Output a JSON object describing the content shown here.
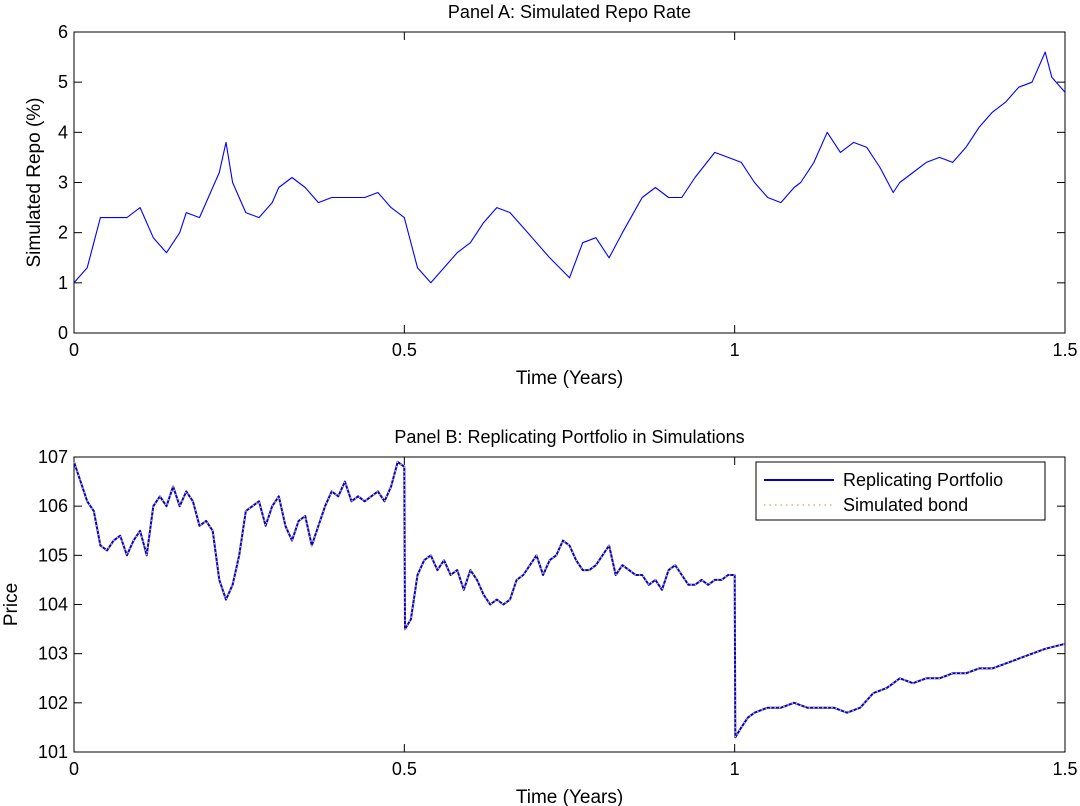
{
  "chart_data": [
    {
      "type": "line",
      "title": "Panel A: Simulated Repo Rate",
      "xlabel": "Time (Years)",
      "ylabel": "Simulated Repo (%)",
      "xlim": [
        0,
        1.5
      ],
      "ylim": [
        0,
        6
      ],
      "xticks": [
        0,
        0.5,
        1,
        1.5
      ],
      "xtick_labels": [
        "0",
        "0.5",
        "1",
        "1.5"
      ],
      "yticks": [
        0,
        1,
        2,
        3,
        4,
        5,
        6
      ],
      "ytick_labels": [
        "0",
        "1",
        "2",
        "3",
        "4",
        "5",
        "6"
      ],
      "grid": false,
      "series": [
        {
          "color": "#0000ff",
          "style": "solid",
          "x": [
            0,
            0.02,
            0.03,
            0.04,
            0.06,
            0.08,
            0.1,
            0.12,
            0.14,
            0.16,
            0.17,
            0.19,
            0.22,
            0.23,
            0.24,
            0.26,
            0.28,
            0.3,
            0.31,
            0.33,
            0.35,
            0.37,
            0.39,
            0.42,
            0.44,
            0.46,
            0.48,
            0.5,
            0.52,
            0.54,
            0.56,
            0.58,
            0.6,
            0.62,
            0.64,
            0.66,
            0.68,
            0.7,
            0.72,
            0.75,
            0.77,
            0.79,
            0.81,
            0.83,
            0.86,
            0.88,
            0.9,
            0.92,
            0.94,
            0.97,
            0.99,
            1.01,
            1.03,
            1.05,
            1.07,
            1.09,
            1.1,
            1.12,
            1.14,
            1.16,
            1.18,
            1.2,
            1.22,
            1.24,
            1.25,
            1.27,
            1.29,
            1.31,
            1.33,
            1.35,
            1.37,
            1.39,
            1.41,
            1.43,
            1.45,
            1.47,
            1.48,
            1.5
          ],
          "y": [
            1.0,
            1.3,
            1.8,
            2.3,
            2.3,
            2.3,
            2.5,
            1.9,
            1.6,
            2.0,
            2.4,
            2.3,
            3.2,
            3.8,
            3.0,
            2.4,
            2.3,
            2.6,
            2.9,
            3.1,
            2.9,
            2.6,
            2.7,
            2.7,
            2.7,
            2.8,
            2.5,
            2.3,
            1.3,
            1.0,
            1.3,
            1.6,
            1.8,
            2.2,
            2.5,
            2.4,
            2.1,
            1.8,
            1.5,
            1.1,
            1.8,
            1.9,
            1.5,
            2.0,
            2.7,
            2.9,
            2.7,
            2.7,
            3.1,
            3.6,
            3.5,
            3.4,
            3.0,
            2.7,
            2.6,
            2.9,
            3.0,
            3.4,
            4.0,
            3.6,
            3.8,
            3.7,
            3.3,
            2.8,
            3.0,
            3.2,
            3.4,
            3.5,
            3.4,
            3.7,
            4.1,
            4.4,
            4.6,
            4.9,
            5.0,
            5.6,
            5.1,
            4.8
          ]
        }
      ]
    },
    {
      "type": "line",
      "title": "Panel B: Replicating Portfolio in Simulations",
      "xlabel": "Time (Years)",
      "ylabel": "Price",
      "xlim": [
        0,
        1.5
      ],
      "ylim": [
        101,
        107
      ],
      "xticks": [
        0,
        0.5,
        1,
        1.5
      ],
      "xtick_labels": [
        "0",
        "0.5",
        "1",
        "1.5"
      ],
      "yticks": [
        101,
        102,
        103,
        104,
        105,
        106,
        107
      ],
      "ytick_labels": [
        "101",
        "102",
        "103",
        "104",
        "105",
        "106",
        "107"
      ],
      "grid": false,
      "legend": "top-right",
      "series": [
        {
          "name": "Replicating Portfolio",
          "color": "#0000cc",
          "style": "solid",
          "x": [
            0,
            0.01,
            0.02,
            0.03,
            0.04,
            0.05,
            0.06,
            0.07,
            0.08,
            0.09,
            0.1,
            0.11,
            0.12,
            0.13,
            0.14,
            0.15,
            0.16,
            0.17,
            0.18,
            0.19,
            0.2,
            0.21,
            0.22,
            0.23,
            0.24,
            0.25,
            0.26,
            0.27,
            0.28,
            0.29,
            0.3,
            0.31,
            0.32,
            0.33,
            0.34,
            0.35,
            0.36,
            0.37,
            0.38,
            0.39,
            0.4,
            0.41,
            0.42,
            0.43,
            0.44,
            0.45,
            0.46,
            0.47,
            0.48,
            0.49,
            0.5,
            0.501,
            0.51,
            0.52,
            0.53,
            0.54,
            0.55,
            0.56,
            0.57,
            0.58,
            0.59,
            0.6,
            0.61,
            0.62,
            0.63,
            0.64,
            0.65,
            0.66,
            0.67,
            0.68,
            0.69,
            0.7,
            0.71,
            0.72,
            0.73,
            0.74,
            0.75,
            0.76,
            0.77,
            0.78,
            0.79,
            0.8,
            0.81,
            0.82,
            0.83,
            0.84,
            0.85,
            0.86,
            0.87,
            0.88,
            0.89,
            0.9,
            0.91,
            0.92,
            0.93,
            0.94,
            0.95,
            0.96,
            0.97,
            0.98,
            0.99,
            1.0,
            1.001,
            1.01,
            1.02,
            1.03,
            1.05,
            1.07,
            1.09,
            1.11,
            1.13,
            1.15,
            1.17,
            1.19,
            1.21,
            1.23,
            1.25,
            1.27,
            1.29,
            1.31,
            1.33,
            1.35,
            1.37,
            1.39,
            1.41,
            1.43,
            1.45,
            1.47,
            1.5
          ],
          "y": [
            106.9,
            106.5,
            106.1,
            105.9,
            105.2,
            105.1,
            105.3,
            105.4,
            105.0,
            105.3,
            105.5,
            105.0,
            106.0,
            106.2,
            106.0,
            106.4,
            106.0,
            106.3,
            106.1,
            105.6,
            105.7,
            105.5,
            104.5,
            104.1,
            104.4,
            105.0,
            105.9,
            106.0,
            106.1,
            105.6,
            106.0,
            106.2,
            105.6,
            105.3,
            105.7,
            105.8,
            105.2,
            105.6,
            106.0,
            106.3,
            106.2,
            106.5,
            106.1,
            106.2,
            106.1,
            106.2,
            106.3,
            106.1,
            106.4,
            106.9,
            106.8,
            103.5,
            103.7,
            104.6,
            104.9,
            105.0,
            104.7,
            104.9,
            104.6,
            104.7,
            104.3,
            104.7,
            104.5,
            104.2,
            104.0,
            104.1,
            104.0,
            104.1,
            104.5,
            104.6,
            104.8,
            105.0,
            104.6,
            104.9,
            105.0,
            105.3,
            105.2,
            104.9,
            104.7,
            104.7,
            104.8,
            105.0,
            105.2,
            104.6,
            104.8,
            104.7,
            104.6,
            104.6,
            104.4,
            104.5,
            104.3,
            104.7,
            104.8,
            104.6,
            104.4,
            104.4,
            104.5,
            104.4,
            104.5,
            104.5,
            104.6,
            104.6,
            101.3,
            101.5,
            101.7,
            101.8,
            101.9,
            101.9,
            102.0,
            101.9,
            101.9,
            101.9,
            101.8,
            101.9,
            102.2,
            102.3,
            102.5,
            102.4,
            102.5,
            102.5,
            102.6,
            102.6,
            102.7,
            102.7,
            102.8,
            102.9,
            103.0,
            103.1,
            103.2
          ]
        },
        {
          "name": "Simulated bond",
          "color": "#d8b47a",
          "style": "dotted",
          "x": [
            0,
            0.01,
            0.02,
            0.03,
            0.04,
            0.05,
            0.06,
            0.07,
            0.08,
            0.09,
            0.1,
            0.11,
            0.12,
            0.13,
            0.14,
            0.15,
            0.16,
            0.17,
            0.18,
            0.19,
            0.2,
            0.21,
            0.22,
            0.23,
            0.24,
            0.25,
            0.26,
            0.27,
            0.28,
            0.29,
            0.3,
            0.31,
            0.32,
            0.33,
            0.34,
            0.35,
            0.36,
            0.37,
            0.38,
            0.39,
            0.4,
            0.41,
            0.42,
            0.43,
            0.44,
            0.45,
            0.46,
            0.47,
            0.48,
            0.49,
            0.5,
            0.501,
            0.51,
            0.52,
            0.53,
            0.54,
            0.55,
            0.56,
            0.57,
            0.58,
            0.59,
            0.6,
            0.61,
            0.62,
            0.63,
            0.64,
            0.65,
            0.66,
            0.67,
            0.68,
            0.69,
            0.7,
            0.71,
            0.72,
            0.73,
            0.74,
            0.75,
            0.76,
            0.77,
            0.78,
            0.79,
            0.8,
            0.81,
            0.82,
            0.83,
            0.84,
            0.85,
            0.86,
            0.87,
            0.88,
            0.89,
            0.9,
            0.91,
            0.92,
            0.93,
            0.94,
            0.95,
            0.96,
            0.97,
            0.98,
            0.99,
            1.0,
            1.001,
            1.01,
            1.02,
            1.03,
            1.05,
            1.07,
            1.09,
            1.11,
            1.13,
            1.15,
            1.17,
            1.19,
            1.21,
            1.23,
            1.25,
            1.27,
            1.29,
            1.31,
            1.33,
            1.35,
            1.37,
            1.39,
            1.41,
            1.43,
            1.45,
            1.47,
            1.5
          ],
          "y": [
            106.9,
            106.5,
            106.1,
            105.9,
            105.2,
            105.1,
            105.3,
            105.4,
            105.0,
            105.3,
            105.5,
            105.0,
            106.0,
            106.2,
            106.0,
            106.4,
            106.0,
            106.3,
            106.1,
            105.6,
            105.7,
            105.5,
            104.5,
            104.1,
            104.4,
            105.0,
            105.9,
            106.0,
            106.1,
            105.6,
            106.0,
            106.2,
            105.6,
            105.3,
            105.7,
            105.8,
            105.2,
            105.6,
            106.0,
            106.3,
            106.2,
            106.5,
            106.1,
            106.2,
            106.1,
            106.2,
            106.3,
            106.1,
            106.4,
            106.9,
            106.8,
            103.5,
            103.7,
            104.6,
            104.9,
            105.0,
            104.7,
            104.9,
            104.6,
            104.7,
            104.3,
            104.7,
            104.5,
            104.2,
            104.0,
            104.1,
            104.0,
            104.1,
            104.5,
            104.6,
            104.8,
            105.0,
            104.6,
            104.9,
            105.0,
            105.3,
            105.2,
            104.9,
            104.7,
            104.7,
            104.8,
            105.0,
            105.2,
            104.6,
            104.8,
            104.7,
            104.6,
            104.6,
            104.4,
            104.5,
            104.3,
            104.7,
            104.8,
            104.6,
            104.4,
            104.4,
            104.5,
            104.4,
            104.5,
            104.5,
            104.6,
            104.6,
            101.3,
            101.5,
            101.7,
            101.8,
            101.9,
            101.9,
            102.0,
            101.9,
            101.9,
            101.9,
            101.8,
            101.9,
            102.2,
            102.3,
            102.5,
            102.4,
            102.5,
            102.5,
            102.6,
            102.6,
            102.7,
            102.7,
            102.8,
            102.9,
            103.0,
            103.1,
            103.2
          ]
        }
      ]
    }
  ]
}
